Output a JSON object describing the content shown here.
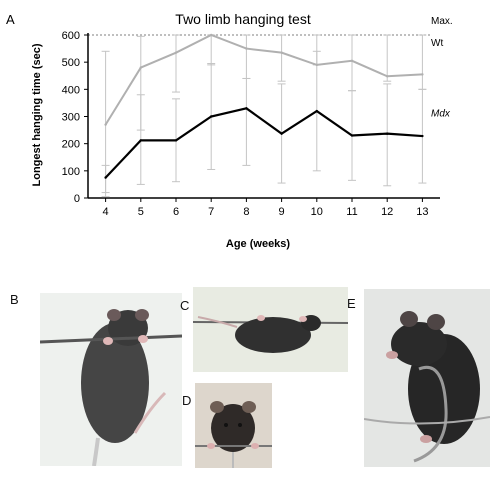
{
  "panel_labels": {
    "a": "A",
    "b": "B",
    "c": "C",
    "d": "D",
    "e": "E"
  },
  "chart_data": {
    "type": "line",
    "title": "Two limb hanging test",
    "xlabel": "Age (weeks)",
    "ylabel": "Longest hanging time (sec)",
    "x": [
      4,
      5,
      6,
      7,
      8,
      9,
      10,
      11,
      12,
      13
    ],
    "xlim": [
      3.5,
      13.5
    ],
    "ylim": [
      0,
      600
    ],
    "yticks": [
      0,
      100,
      200,
      300,
      400,
      500,
      600
    ],
    "reference_line": {
      "value": 600,
      "label": "Max.",
      "style": "dotted"
    },
    "series": [
      {
        "name": "Wt",
        "color": "#b0b0b0",
        "italic": false,
        "values": [
          270,
          480,
          535,
          600,
          550,
          535,
          490,
          505,
          448,
          455
        ],
        "err_low": [
          20,
          250,
          390,
          490,
          440,
          430,
          490,
          395,
          430,
          400
        ],
        "err_high": [
          540,
          595,
          600,
          600,
          600,
          600,
          600,
          600,
          600,
          600
        ]
      },
      {
        "name": "Mdx",
        "color": "#000000",
        "italic": true,
        "values": [
          75,
          212,
          212,
          300,
          330,
          237,
          320,
          230,
          237,
          228
        ],
        "err_low": [
          5,
          50,
          60,
          105,
          120,
          55,
          100,
          65,
          45,
          55
        ],
        "err_high": [
          120,
          380,
          365,
          495,
          440,
          420,
          540,
          395,
          420,
          400
        ]
      }
    ]
  },
  "photos": [
    {
      "label": "B",
      "icon": "mouse-hanging-bar-photo"
    },
    {
      "label": "C",
      "icon": "mouse-side-bar-photo"
    },
    {
      "label": "D",
      "icon": "mouse-front-bar-photo"
    },
    {
      "label": "E",
      "icon": "mouse-wire-photo"
    }
  ]
}
